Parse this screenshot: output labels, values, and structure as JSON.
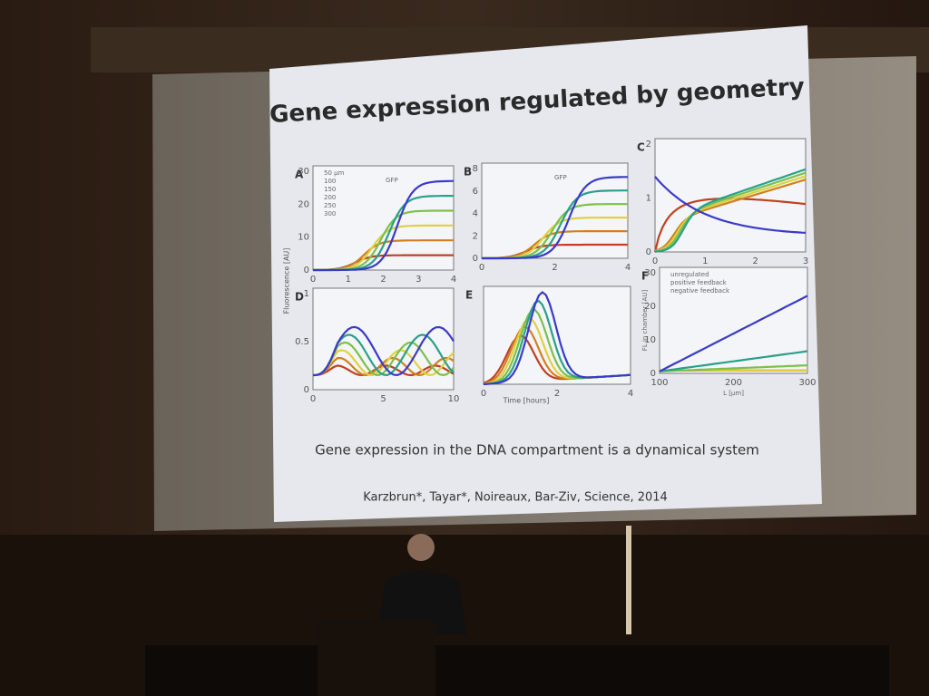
{
  "slide": {
    "title": "Gene expression regulated by geometry",
    "caption": "Gene expression in the DNA compartment is a dynamical system",
    "citation": "Karzbrun*, Tayar*, Noireaux, Bar-Ziv, Science, 2014",
    "y_axis_label": "Fluorescence [AU]",
    "x_axis_label": "Time [hours]",
    "panels": [
      {
        "label": "A",
        "xticks": [
          "0",
          "1",
          "2",
          "3",
          "4"
        ],
        "yticks": [
          "30",
          "20",
          "10",
          "0"
        ],
        "legend": [
          "50 µm",
          "100",
          "150",
          "200",
          "250",
          "300"
        ],
        "note": "GFP"
      },
      {
        "label": "B",
        "xticks": [
          "0",
          "2",
          "4"
        ],
        "yticks": [
          "8",
          "6",
          "4",
          "2",
          "0"
        ],
        "note": "GFP"
      },
      {
        "label": "C",
        "xticks": [
          "0",
          "1",
          "2",
          "3"
        ],
        "yticks": [
          "2",
          "1",
          "0"
        ]
      },
      {
        "label": "D",
        "xticks": [
          "0",
          "5",
          "10"
        ],
        "yticks": [
          "1",
          "0.5",
          "0"
        ]
      },
      {
        "label": "E",
        "xticks": [
          "0",
          "2",
          "4"
        ]
      },
      {
        "label": "F",
        "xticks": [
          "100",
          "200",
          "300"
        ],
        "yticks": [
          "30",
          "20",
          "10",
          "0"
        ],
        "legend": [
          "unregulated",
          "positive feedback",
          "negative feedback"
        ],
        "y_axis_label": "FL in chamber [AU]",
        "x_axis_label": "L [µm]"
      }
    ]
  }
}
